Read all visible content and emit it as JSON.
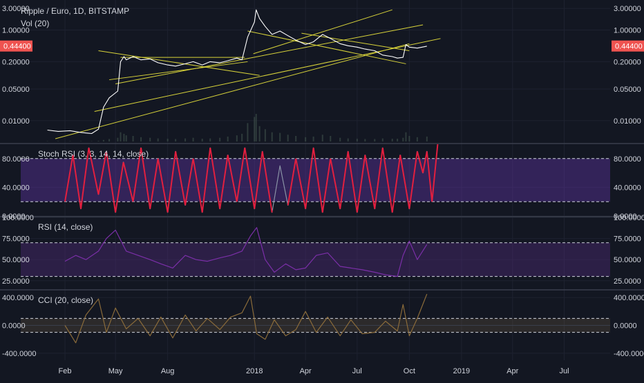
{
  "header": {
    "title": "Ripple / Euro, 1D, BITSTAMP",
    "volume_label": "Vol (20)"
  },
  "price_badge": {
    "label": "0.44400",
    "value": 0.444,
    "color": "#ef5350"
  },
  "chart_data": [
    {
      "type": "line",
      "name": "price",
      "scale": "log",
      "ylim": [
        0.004,
        4.0
      ],
      "y_ticks": [
        {
          "value": 3.0,
          "label": "3.00000"
        },
        {
          "value": 1.0,
          "label": "1.00000"
        },
        {
          "value": 0.2,
          "label": "0.20000"
        },
        {
          "value": 0.05,
          "label": "0.05000"
        },
        {
          "value": 0.01,
          "label": "0.01000"
        }
      ],
      "x": [
        "2017-01-01",
        "2017-01-20",
        "2017-02-10",
        "2017-03-01",
        "2017-03-20",
        "2017-04-01",
        "2017-04-10",
        "2017-04-20",
        "2017-05-05",
        "2017-05-10",
        "2017-05-16",
        "2017-05-20",
        "2017-06-01",
        "2017-06-15",
        "2017-07-01",
        "2017-07-15",
        "2017-08-01",
        "2017-08-15",
        "2017-09-01",
        "2017-09-15",
        "2017-10-01",
        "2017-10-15",
        "2017-11-01",
        "2017-11-15",
        "2017-12-01",
        "2017-12-10",
        "2017-12-20",
        "2018-01-01",
        "2018-01-04",
        "2018-01-10",
        "2018-01-20",
        "2018-02-01",
        "2018-02-15",
        "2018-03-01",
        "2018-03-15",
        "2018-04-01",
        "2018-04-15",
        "2018-05-01",
        "2018-05-15",
        "2018-06-01",
        "2018-06-15",
        "2018-07-01",
        "2018-07-15",
        "2018-08-01",
        "2018-08-15",
        "2018-09-01",
        "2018-09-10",
        "2018-09-20",
        "2018-09-25",
        "2018-10-01",
        "2018-10-15",
        "2018-11-01"
      ],
      "values": [
        0.0062,
        0.0058,
        0.006,
        0.0055,
        0.0052,
        0.0065,
        0.02,
        0.032,
        0.045,
        0.2,
        0.26,
        0.22,
        0.26,
        0.22,
        0.23,
        0.19,
        0.17,
        0.16,
        0.18,
        0.2,
        0.17,
        0.2,
        0.19,
        0.21,
        0.24,
        0.22,
        0.7,
        1.5,
        2.8,
        1.8,
        1.2,
        0.8,
        0.95,
        0.75,
        0.6,
        0.48,
        0.55,
        0.8,
        0.65,
        0.5,
        0.45,
        0.42,
        0.38,
        0.35,
        0.28,
        0.26,
        0.24,
        0.25,
        0.48,
        0.42,
        0.4,
        0.44
      ],
      "volume": [
        1,
        1,
        1,
        1,
        1,
        2,
        5,
        8,
        12,
        30,
        25,
        20,
        18,
        14,
        12,
        10,
        9,
        8,
        10,
        12,
        9,
        10,
        12,
        16,
        20,
        25,
        60,
        80,
        90,
        50,
        40,
        30,
        28,
        22,
        18,
        14,
        16,
        22,
        18,
        12,
        10,
        9,
        8,
        8,
        10,
        9,
        9,
        12,
        30,
        18,
        14,
        16
      ],
      "trend_lines": [
        {
          "x": [
            "2017-01-15",
            "2018-10-01"
          ],
          "y": [
            0.004,
            0.5
          ]
        },
        {
          "x": [
            "2017-03-25",
            "2018-11-25"
          ],
          "y": [
            0.016,
            0.65
          ]
        },
        {
          "x": [
            "2017-05-01",
            "2018-10-25"
          ],
          "y": [
            0.065,
            1.3
          ]
        },
        {
          "x": [
            "2017-12-30",
            "2018-09-01"
          ],
          "y": [
            0.3,
            2.8
          ]
        },
        {
          "x": [
            "2017-04-01",
            "2018-01-10"
          ],
          "y": [
            0.35,
            0.1
          ]
        },
        {
          "x": [
            "2017-04-20",
            "2017-12-20"
          ],
          "y": [
            0.08,
            0.2
          ]
        },
        {
          "x": [
            "2017-05-10",
            "2017-12-15"
          ],
          "y": [
            0.25,
            0.25
          ]
        },
        {
          "x": [
            "2017-12-20",
            "2018-09-25"
          ],
          "y": [
            0.95,
            0.18
          ]
        },
        {
          "x": [
            "2018-03-25",
            "2018-10-01"
          ],
          "y": [
            0.85,
            0.35
          ]
        }
      ],
      "x_ticks": [
        {
          "value": "2017-02-01",
          "label": "Feb"
        },
        {
          "value": "2017-05-01",
          "label": "May"
        },
        {
          "value": "2017-08-01",
          "label": "Aug"
        },
        {
          "value": "2018-01-01",
          "label": "2018"
        },
        {
          "value": "2018-04-01",
          "label": "Apr"
        },
        {
          "value": "2018-07-01",
          "label": "Jul"
        },
        {
          "value": "2018-10-01",
          "label": "Oct"
        },
        {
          "value": "2019-01-01",
          "label": "2019"
        },
        {
          "value": "2019-04-01",
          "label": "Apr"
        },
        {
          "value": "2019-07-01",
          "label": "Jul"
        }
      ],
      "xlim": [
        "2016-11-15",
        "2019-09-20"
      ]
    },
    {
      "type": "line",
      "name": "Stoch RSI (3, 3, 14, 14, close)",
      "ylim": [
        0,
        100
      ],
      "band": [
        20,
        80
      ],
      "y_ticks": [
        {
          "value": 80,
          "label": "80.0000"
        },
        {
          "value": 40,
          "label": "40.0000"
        },
        {
          "value": 0,
          "label": "0.0000"
        }
      ],
      "x": [
        "2017-02-01",
        "2017-02-15",
        "2017-03-01",
        "2017-03-15",
        "2017-04-01",
        "2017-04-15",
        "2017-05-01",
        "2017-05-15",
        "2017-06-01",
        "2017-06-15",
        "2017-07-01",
        "2017-07-15",
        "2017-08-01",
        "2017-08-15",
        "2017-09-01",
        "2017-09-15",
        "2017-10-01",
        "2017-10-15",
        "2017-11-01",
        "2017-11-15",
        "2017-12-01",
        "2017-12-15",
        "2018-01-01",
        "2018-01-15",
        "2018-02-01",
        "2018-02-15",
        "2018-03-01",
        "2018-03-15",
        "2018-04-01",
        "2018-04-15",
        "2018-05-01",
        "2018-05-15",
        "2018-06-01",
        "2018-06-15",
        "2018-07-01",
        "2018-07-15",
        "2018-08-01",
        "2018-08-15",
        "2018-09-01",
        "2018-09-15",
        "2018-10-01",
        "2018-10-15",
        "2018-10-25",
        "2018-11-01",
        "2018-11-10",
        "2018-11-20"
      ],
      "values": [
        20,
        85,
        10,
        95,
        30,
        90,
        5,
        75,
        20,
        95,
        10,
        80,
        5,
        90,
        15,
        80,
        5,
        95,
        10,
        85,
        20,
        95,
        10,
        90,
        5,
        70,
        15,
        80,
        10,
        95,
        5,
        80,
        10,
        90,
        5,
        85,
        10,
        95,
        5,
        85,
        10,
        90,
        60,
        90,
        20,
        100
      ]
    },
    {
      "type": "line",
      "name": "RSI (14, close)",
      "ylim": [
        15,
        100
      ],
      "band": [
        30,
        70
      ],
      "y_ticks": [
        {
          "value": 100,
          "label": "100.0000"
        },
        {
          "value": 75,
          "label": "75.0000"
        },
        {
          "value": 50,
          "label": "50.0000"
        },
        {
          "value": 25,
          "label": "25.0000"
        }
      ],
      "x": [
        "2017-02-01",
        "2017-02-20",
        "2017-03-10",
        "2017-04-01",
        "2017-04-15",
        "2017-05-01",
        "2017-05-20",
        "2017-06-10",
        "2017-07-01",
        "2017-07-20",
        "2017-08-10",
        "2017-09-01",
        "2017-09-20",
        "2017-10-10",
        "2017-11-01",
        "2017-11-20",
        "2017-12-10",
        "2017-12-25",
        "2018-01-05",
        "2018-01-20",
        "2018-02-05",
        "2018-02-25",
        "2018-03-15",
        "2018-04-01",
        "2018-04-20",
        "2018-05-10",
        "2018-06-01",
        "2018-06-20",
        "2018-07-10",
        "2018-08-01",
        "2018-08-20",
        "2018-09-10",
        "2018-09-20",
        "2018-10-01",
        "2018-10-15",
        "2018-11-01"
      ],
      "values": [
        48,
        55,
        50,
        60,
        75,
        85,
        60,
        55,
        50,
        45,
        40,
        55,
        50,
        48,
        52,
        55,
        60,
        78,
        88,
        50,
        35,
        45,
        38,
        40,
        55,
        58,
        42,
        40,
        38,
        35,
        32,
        30,
        55,
        72,
        50,
        68
      ]
    },
    {
      "type": "line",
      "name": "CCI (20, close)",
      "ylim": [
        -500,
        500
      ],
      "band": [
        -100,
        100
      ],
      "y_ticks": [
        {
          "value": 400,
          "label": "400.0000"
        },
        {
          "value": 0,
          "label": "0.0000"
        },
        {
          "value": -400,
          "label": "-400.0000"
        }
      ],
      "x": [
        "2017-02-01",
        "2017-02-20",
        "2017-03-10",
        "2017-04-01",
        "2017-04-15",
        "2017-05-01",
        "2017-05-20",
        "2017-06-10",
        "2017-07-01",
        "2017-07-20",
        "2017-08-10",
        "2017-09-01",
        "2017-09-20",
        "2017-10-10",
        "2017-11-01",
        "2017-11-20",
        "2017-12-10",
        "2017-12-25",
        "2018-01-05",
        "2018-01-20",
        "2018-02-05",
        "2018-02-25",
        "2018-03-15",
        "2018-04-01",
        "2018-04-20",
        "2018-05-10",
        "2018-06-01",
        "2018-06-20",
        "2018-07-10",
        "2018-08-01",
        "2018-08-20",
        "2018-09-10",
        "2018-09-20",
        "2018-10-01",
        "2018-10-15",
        "2018-11-01"
      ],
      "values": [
        0,
        -250,
        150,
        380,
        -100,
        250,
        -50,
        100,
        -150,
        120,
        -180,
        150,
        -80,
        100,
        -60,
        120,
        180,
        420,
        -120,
        -200,
        80,
        -150,
        -60,
        200,
        -100,
        120,
        -150,
        80,
        -120,
        -100,
        60,
        -80,
        300,
        -150,
        100,
        450
      ]
    }
  ]
}
